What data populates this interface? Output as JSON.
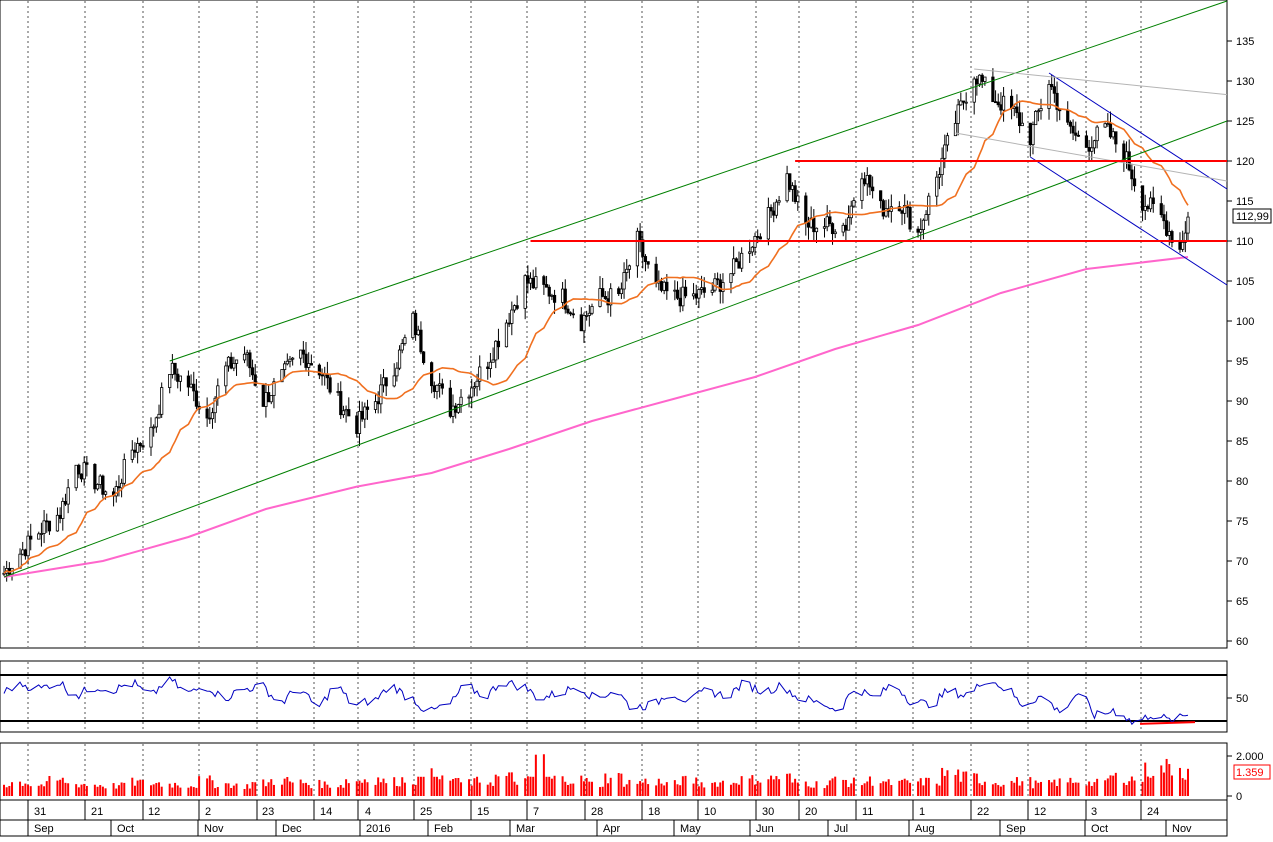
{
  "chart_data": [
    {
      "type": "candlestick",
      "panel": "price",
      "yticks": [
        135,
        130,
        125,
        120,
        115,
        110,
        105,
        100,
        95,
        90,
        85,
        80,
        75,
        70,
        65,
        60
      ],
      "ylim": [
        59,
        140
      ],
      "last_price_label": "112,99",
      "last_price": 112.99,
      "support_resistance": [
        {
          "level": 120,
          "from": "2016-06-16",
          "to": "2016-11-11",
          "color": "#ff0000"
        },
        {
          "level": 110,
          "from": "2016-03-09",
          "to": "2016-11-11",
          "color": "#ff0000"
        }
      ],
      "price_path": [
        {
          "d": "2015-08-25",
          "c": 68.5
        },
        {
          "d": "2015-08-31",
          "c": 71
        },
        {
          "d": "2015-09-08",
          "c": 74
        },
        {
          "d": "2015-09-15",
          "c": 76
        },
        {
          "d": "2015-09-21",
          "c": 82
        },
        {
          "d": "2015-09-28",
          "c": 80
        },
        {
          "d": "2015-10-05",
          "c": 78
        },
        {
          "d": "2015-10-12",
          "c": 84
        },
        {
          "d": "2015-10-19",
          "c": 86
        },
        {
          "d": "2015-10-26",
          "c": 94
        },
        {
          "d": "2015-11-02",
          "c": 92
        },
        {
          "d": "2015-11-09",
          "c": 88
        },
        {
          "d": "2015-11-16",
          "c": 94
        },
        {
          "d": "2015-11-23",
          "c": 96
        },
        {
          "d": "2015-11-30",
          "c": 90
        },
        {
          "d": "2015-12-07",
          "c": 93
        },
        {
          "d": "2015-12-14",
          "c": 96
        },
        {
          "d": "2015-12-21",
          "c": 94
        },
        {
          "d": "2015-12-28",
          "c": 90
        },
        {
          "d": "2016-01-04",
          "c": 87
        },
        {
          "d": "2016-01-11",
          "c": 90
        },
        {
          "d": "2016-01-19",
          "c": 95
        },
        {
          "d": "2016-01-25",
          "c": 100
        },
        {
          "d": "2016-02-01",
          "c": 93
        },
        {
          "d": "2016-02-08",
          "c": 89
        },
        {
          "d": "2016-02-16",
          "c": 92
        },
        {
          "d": "2016-02-22",
          "c": 95
        },
        {
          "d": "2016-02-29",
          "c": 100
        },
        {
          "d": "2016-03-07",
          "c": 105
        },
        {
          "d": "2016-03-14",
          "c": 104
        },
        {
          "d": "2016-03-21",
          "c": 103
        },
        {
          "d": "2016-03-28",
          "c": 100
        },
        {
          "d": "2016-04-04",
          "c": 103
        },
        {
          "d": "2016-04-11",
          "c": 103
        },
        {
          "d": "2016-04-18",
          "c": 110
        },
        {
          "d": "2016-04-25",
          "c": 104
        },
        {
          "d": "2016-05-02",
          "c": 103
        },
        {
          "d": "2016-05-09",
          "c": 103
        },
        {
          "d": "2016-05-16",
          "c": 104
        },
        {
          "d": "2016-05-23",
          "c": 106
        },
        {
          "d": "2016-05-31",
          "c": 110
        },
        {
          "d": "2016-06-06",
          "c": 113
        },
        {
          "d": "2016-06-13",
          "c": 118
        },
        {
          "d": "2016-06-20",
          "c": 112
        },
        {
          "d": "2016-06-27",
          "c": 112
        },
        {
          "d": "2016-07-05",
          "c": 112
        },
        {
          "d": "2016-07-11",
          "c": 119
        },
        {
          "d": "2016-07-18",
          "c": 114
        },
        {
          "d": "2016-07-25",
          "c": 115
        },
        {
          "d": "2016-08-01",
          "c": 111
        },
        {
          "d": "2016-08-08",
          "c": 118
        },
        {
          "d": "2016-08-15",
          "c": 125
        },
        {
          "d": "2016-08-22",
          "c": 131
        },
        {
          "d": "2016-08-29",
          "c": 128
        },
        {
          "d": "2016-09-06",
          "c": 126
        },
        {
          "d": "2016-09-12",
          "c": 123
        },
        {
          "d": "2016-09-19",
          "c": 130
        },
        {
          "d": "2016-09-26",
          "c": 124
        },
        {
          "d": "2016-10-03",
          "c": 122
        },
        {
          "d": "2016-10-10",
          "c": 124
        },
        {
          "d": "2016-10-17",
          "c": 121
        },
        {
          "d": "2016-10-24",
          "c": 115
        },
        {
          "d": "2016-10-31",
          "c": 113
        },
        {
          "d": "2016-11-07",
          "c": 109
        },
        {
          "d": "2016-11-10",
          "c": 112.99
        }
      ],
      "trendlines": [
        {
          "name": "",
          "color": "#008000",
          "p1": {
            "d": "2015-08-25",
            "v": 68
          },
          "p2": {
            "d": "2016-11-15",
            "v": 125
          }
        },
        {
          "name": "",
          "color": "#008000",
          "p1": {
            "d": "2015-10-26",
            "v": 95
          },
          "p2": {
            "d": "2016-11-15",
            "v": 140
          }
        },
        {
          "name": "",
          "color": "#0000c0",
          "p1": {
            "d": "2016-09-19",
            "v": 131
          },
          "p2": {
            "d": "2016-11-15",
            "v": 116.5
          }
        },
        {
          "name": "",
          "color": "#0000c0",
          "p1": {
            "d": "2016-09-12",
            "v": 120.5
          },
          "p2": {
            "d": "2016-11-15",
            "v": 104.5
          }
        }
      ],
      "grey_lines": [
        {
          "color": "#b4b4b4",
          "p1": {
            "d": "2016-08-22",
            "v": 131.5
          },
          "p2": {
            "d": "2016-11-15",
            "v": 128.3
          }
        },
        {
          "color": "#b4b4b4",
          "p1": {
            "d": "2016-08-15",
            "v": 123.5
          },
          "p2": {
            "d": "2016-11-15",
            "v": 117.5
          }
        }
      ],
      "ma_short": {
        "color": "#f07020"
      },
      "ma_long": {
        "color": "#ff66cc",
        "points": [
          {
            "d": "2015-08-25",
            "v": 68
          },
          {
            "d": "2015-10-01",
            "v": 70
          },
          {
            "d": "2015-11-02",
            "v": 73
          },
          {
            "d": "2015-12-01",
            "v": 76.5
          },
          {
            "d": "2016-01-04",
            "v": 79.3
          },
          {
            "d": "2016-02-01",
            "v": 81
          },
          {
            "d": "2016-03-01",
            "v": 84
          },
          {
            "d": "2016-04-01",
            "v": 87.5
          },
          {
            "d": "2016-05-02",
            "v": 90.3
          },
          {
            "d": "2016-06-01",
            "v": 93
          },
          {
            "d": "2016-07-01",
            "v": 96.5
          },
          {
            "d": "2016-08-01",
            "v": 99.5
          },
          {
            "d": "2016-09-01",
            "v": 103.5
          },
          {
            "d": "2016-10-03",
            "v": 106.5
          },
          {
            "d": "2016-11-10",
            "v": 108
          }
        ]
      }
    },
    {
      "type": "line",
      "panel": "oscillator",
      "yticks": [
        50
      ],
      "upper_band": 70,
      "lower_band": 30,
      "color": "#0000c0",
      "values_weekly": [
        55,
        62,
        58,
        64,
        52,
        60,
        57,
        63,
        52,
        66,
        54,
        60,
        50,
        58,
        60,
        46,
        58,
        42,
        60,
        44,
        48,
        60,
        50,
        38,
        44,
        60,
        52,
        64,
        60,
        50,
        54,
        60,
        50,
        56,
        42,
        44,
        54,
        48,
        56,
        52,
        62,
        56,
        60,
        50,
        46,
        40,
        58,
        50,
        62,
        48,
        44,
        56,
        52,
        66,
        60,
        44,
        52,
        38,
        54,
        34,
        40,
        28,
        36,
        30,
        36
      ]
    },
    {
      "type": "bar",
      "panel": "volume",
      "yticks": [
        "2.000",
        "0"
      ],
      "ytick_values": [
        2000,
        0
      ],
      "last_volume_label": "1.359",
      "last_volume": 1359,
      "color": "#ff0000",
      "values_weekly": [
        700,
        800,
        650,
        900,
        700,
        650,
        600,
        800,
        750,
        700,
        650,
        900,
        700,
        600,
        750,
        900,
        800,
        700,
        650,
        900,
        1000,
        850,
        950,
        2400,
        1000,
        800,
        850,
        1100,
        900,
        2400,
        1000,
        950,
        700,
        1100,
        800,
        850,
        700,
        900,
        750,
        800,
        950,
        1000,
        1100,
        800,
        700,
        900,
        800,
        900,
        750,
        800,
        850,
        1300,
        1100,
        900,
        800,
        850,
        700,
        800,
        900,
        750,
        1100,
        1000,
        1500,
        1700,
        1359
      ]
    }
  ],
  "x_axis": {
    "day_labels": [
      "31",
      "21",
      "12",
      "2",
      "23",
      "14",
      "4",
      "25",
      "15",
      "7",
      "28",
      "18",
      "10",
      "30",
      "20",
      "11",
      "1",
      "22",
      "12",
      "3",
      "24"
    ],
    "month_labels": [
      "Sep",
      "Oct",
      "Nov",
      "Dec",
      "2016",
      "Feb",
      "Mar",
      "Apr",
      "May",
      "Jun",
      "Jul",
      "Aug",
      "Sep",
      "Oct",
      "Nov"
    ]
  }
}
